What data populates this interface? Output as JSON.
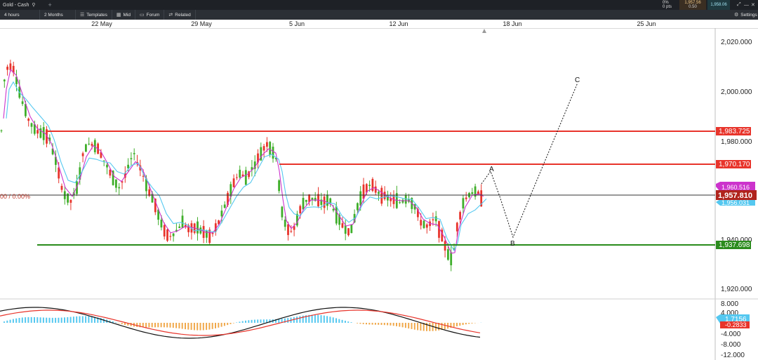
{
  "window": {
    "title": "Gold - Cash"
  },
  "quote": {
    "change": "0%",
    "change_pts": "0 pts",
    "bid": "1,957.56",
    "ask": "1,958.06",
    "spread": "0.50"
  },
  "toolbar": {
    "interval": "4 hours",
    "range": "2 Months",
    "templates": "Templates",
    "mid": "Mid",
    "forum": "Forum",
    "related": "Related",
    "settings": "Settings"
  },
  "chart_data": {
    "type": "candlestick",
    "instrument": "Gold - Cash",
    "x_ticks": [
      "22 May",
      "29 May",
      "5 Jun",
      "12 Jun",
      "18 Jun",
      "25 Jun"
    ],
    "y_ticks": [
      "2,020.000",
      "2,000.000",
      "1,980.000",
      "1,940.000",
      "1,920.000"
    ],
    "ylim": [
      1915,
      2025
    ],
    "fib_label": "00 / 0.00%",
    "horizontal_lines": [
      {
        "label": "1,983.725",
        "value": 1983.725,
        "color": "#e8342b"
      },
      {
        "label": "1,970.170",
        "value": 1970.17,
        "color": "#e8342b"
      },
      {
        "label": "1,937.698",
        "value": 1937.698,
        "color": "#2a8b1c"
      }
    ],
    "current_price": {
      "label": "1,957.810",
      "value": 1957.81
    },
    "ma_labels": [
      {
        "label": "1,960.516",
        "value": 1960.5,
        "color": "#cc33cc"
      },
      {
        "label": "1,956.031",
        "value": 1956.0,
        "color": "#55c8f0"
      }
    ],
    "projection": [
      {
        "label": "A",
        "date": "15 Jun",
        "value": 1968
      },
      {
        "label": "B",
        "date": "16 Jun",
        "value": 1940
      },
      {
        "label": "C",
        "date": "19 Jun",
        "value": 2004
      }
    ],
    "macd": {
      "y_ticks": [
        "8.000",
        "4.000",
        "-4.000",
        "-8.000",
        "-12.000"
      ],
      "ylim": [
        -12,
        9
      ],
      "value_label": "1.7156",
      "signal_label": "-0.2833"
    }
  }
}
